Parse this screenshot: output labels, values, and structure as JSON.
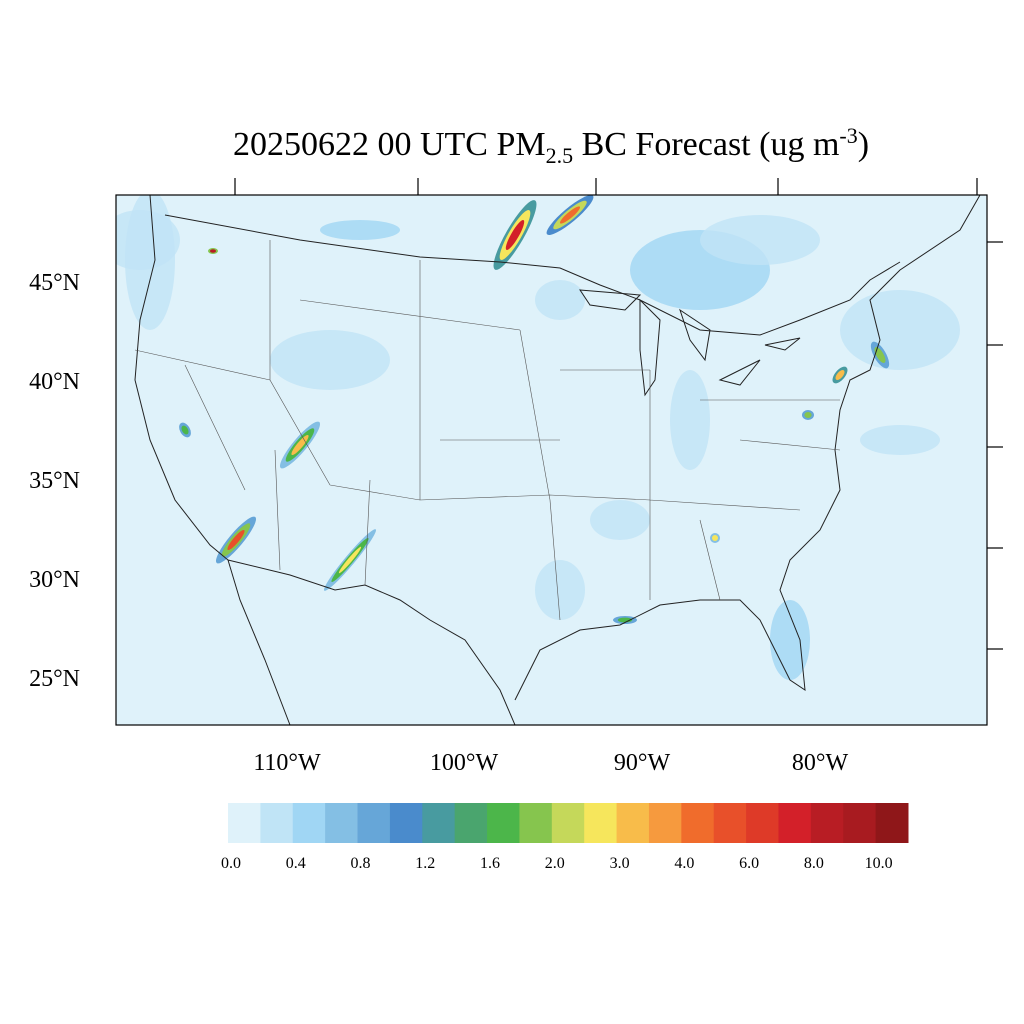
{
  "title": {
    "main": "20250622 00 UTC PM",
    "subscript": "2.5",
    "middle": " BC Forecast (ug m",
    "superscript": "-3",
    "end": ")"
  },
  "lat_labels": [
    "45°N",
    "40°N",
    "35°N",
    "30°N",
    "25°N"
  ],
  "lon_labels": [
    "110°W",
    "100°W",
    "90°W",
    "80°W"
  ],
  "colorbar": {
    "colors": [
      "#dff2fa",
      "#c0e4f6",
      "#a0d6f4",
      "#84bfe4",
      "#66a6d8",
      "#4a8bcc",
      "#489ba0",
      "#4aa56e",
      "#4cb64a",
      "#86c54e",
      "#c5d85a",
      "#f6e65c",
      "#f8bc4a",
      "#f69a3e",
      "#f06c2c",
      "#e8502a",
      "#de3a28",
      "#d32029",
      "#b81d24",
      "#a81b20",
      "#8f1719"
    ],
    "labels": [
      "0.0",
      "0.4",
      "0.8",
      "1.2",
      "1.6",
      "2.0",
      "3.0",
      "4.0",
      "6.0",
      "8.0",
      "10.0"
    ]
  }
}
